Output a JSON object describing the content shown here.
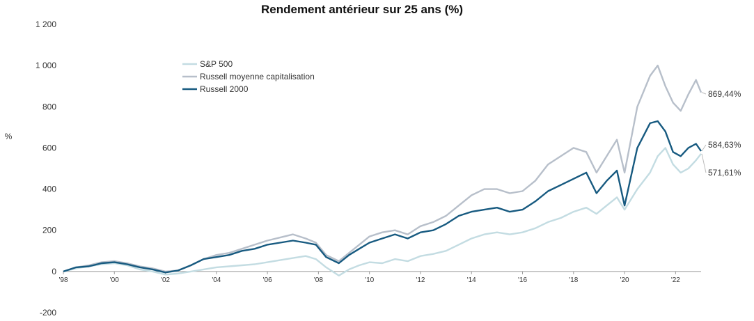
{
  "chart_data": {
    "type": "line",
    "title": "Rendement antérieur sur 25 ans (%)",
    "ylabel": "%",
    "xlabel": "",
    "xlim": [
      1998.0,
      2023.0
    ],
    "ylim": [
      -200,
      1200
    ],
    "yticks": [
      -200,
      0,
      200,
      400,
      600,
      800,
      1000,
      1200
    ],
    "ytick_labels": [
      "-200",
      "0",
      "200",
      "400",
      "600",
      "800",
      "1 000",
      "1 200"
    ],
    "xticks": [
      1998,
      2000,
      2002,
      2004,
      2006,
      2008,
      2010,
      2012,
      2014,
      2016,
      2018,
      2020,
      2022
    ],
    "xtick_labels": [
      "'98",
      "'00",
      "'02",
      "'04",
      "'06",
      "'08",
      "'10",
      "'12",
      "'14",
      "'16",
      "'18",
      "'20",
      "'22"
    ],
    "grid": false,
    "legend_position": "upper-left",
    "series": [
      {
        "name": "S&P 500",
        "color": "#c3dce2",
        "end_label": "571,61%",
        "x": [
          1998.0,
          1998.5,
          1999.0,
          1999.5,
          2000.0,
          2000.5,
          2001.0,
          2001.5,
          2002.0,
          2002.5,
          2003.0,
          2003.5,
          2004.0,
          2004.5,
          2005.0,
          2005.5,
          2006.0,
          2006.5,
          2007.0,
          2007.5,
          2007.9,
          2008.3,
          2008.8,
          2009.2,
          2009.6,
          2010.0,
          2010.5,
          2011.0,
          2011.5,
          2012.0,
          2012.5,
          2013.0,
          2013.5,
          2014.0,
          2014.5,
          2015.0,
          2015.5,
          2016.0,
          2016.5,
          2017.0,
          2017.5,
          2018.0,
          2018.5,
          2018.9,
          2019.3,
          2019.7,
          2020.0,
          2020.5,
          2021.0,
          2021.3,
          2021.6,
          2021.9,
          2022.2,
          2022.5,
          2022.8,
          2023.0
        ],
        "values": [
          0,
          15,
          25,
          35,
          40,
          30,
          10,
          0,
          -15,
          -10,
          0,
          10,
          20,
          25,
          30,
          35,
          45,
          55,
          65,
          75,
          60,
          20,
          -20,
          10,
          30,
          45,
          40,
          60,
          50,
          75,
          85,
          100,
          130,
          160,
          180,
          190,
          180,
          190,
          210,
          240,
          260,
          290,
          310,
          280,
          320,
          360,
          300,
          400,
          480,
          560,
          600,
          520,
          480,
          500,
          540,
          571.61
        ]
      },
      {
        "name": "Russell moyenne capitalisation",
        "color": "#b7bfca",
        "end_label": "869,44%",
        "x": [
          1998.0,
          1998.5,
          1999.0,
          1999.5,
          2000.0,
          2000.5,
          2001.0,
          2001.5,
          2002.0,
          2002.5,
          2003.0,
          2003.5,
          2004.0,
          2004.5,
          2005.0,
          2005.5,
          2006.0,
          2006.5,
          2007.0,
          2007.5,
          2007.9,
          2008.3,
          2008.8,
          2009.2,
          2009.6,
          2010.0,
          2010.5,
          2011.0,
          2011.5,
          2012.0,
          2012.5,
          2013.0,
          2013.5,
          2014.0,
          2014.5,
          2015.0,
          2015.5,
          2016.0,
          2016.5,
          2017.0,
          2017.5,
          2018.0,
          2018.5,
          2018.9,
          2019.3,
          2019.7,
          2020.0,
          2020.5,
          2021.0,
          2021.3,
          2021.6,
          2021.9,
          2022.2,
          2022.5,
          2022.8,
          2023.0
        ],
        "values": [
          0,
          20,
          30,
          45,
          50,
          40,
          25,
          15,
          0,
          5,
          30,
          60,
          80,
          90,
          110,
          130,
          150,
          165,
          180,
          160,
          140,
          80,
          50,
          90,
          130,
          170,
          190,
          200,
          180,
          220,
          240,
          270,
          320,
          370,
          400,
          400,
          380,
          390,
          440,
          520,
          560,
          600,
          580,
          480,
          560,
          640,
          480,
          800,
          950,
          1000,
          900,
          820,
          780,
          860,
          930,
          869.44
        ]
      },
      {
        "name": "Russell 2000",
        "color": "#175a80",
        "end_label": "584,63%",
        "x": [
          1998.0,
          1998.5,
          1999.0,
          1999.5,
          2000.0,
          2000.5,
          2001.0,
          2001.5,
          2002.0,
          2002.5,
          2003.0,
          2003.5,
          2004.0,
          2004.5,
          2005.0,
          2005.5,
          2006.0,
          2006.5,
          2007.0,
          2007.5,
          2007.9,
          2008.3,
          2008.8,
          2009.2,
          2009.6,
          2010.0,
          2010.5,
          2011.0,
          2011.5,
          2012.0,
          2012.5,
          2013.0,
          2013.5,
          2014.0,
          2014.5,
          2015.0,
          2015.5,
          2016.0,
          2016.5,
          2017.0,
          2017.5,
          2018.0,
          2018.5,
          2018.9,
          2019.3,
          2019.7,
          2020.0,
          2020.5,
          2021.0,
          2021.3,
          2021.6,
          2021.9,
          2022.2,
          2022.5,
          2022.8,
          2023.0
        ],
        "values": [
          0,
          20,
          25,
          40,
          45,
          35,
          20,
          10,
          -5,
          5,
          30,
          60,
          70,
          80,
          100,
          110,
          130,
          140,
          150,
          140,
          130,
          70,
          40,
          80,
          110,
          140,
          160,
          180,
          160,
          190,
          200,
          230,
          270,
          290,
          300,
          310,
          290,
          300,
          340,
          390,
          420,
          450,
          480,
          380,
          440,
          490,
          320,
          600,
          720,
          730,
          680,
          580,
          560,
          600,
          620,
          584.63
        ]
      }
    ]
  }
}
